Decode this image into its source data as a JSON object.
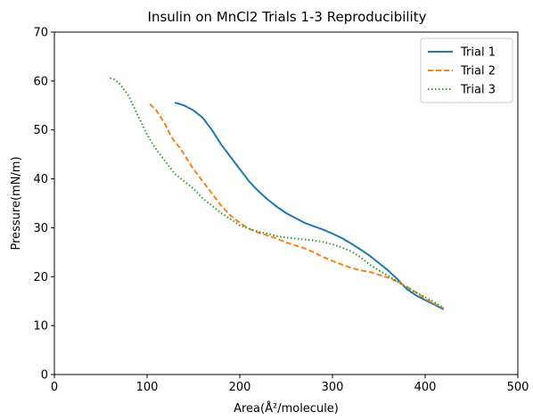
{
  "chart_data": {
    "type": "line",
    "title": "Insulin on MnCl2 Trials 1-3 Reproducibility",
    "xlabel": "Area(Å²/molecule)",
    "ylabel": "Pressure(mN/m)",
    "xlim": [
      0,
      500
    ],
    "ylim": [
      0,
      70
    ],
    "x_ticks": [
      "0",
      "100",
      "200",
      "300",
      "400",
      "500"
    ],
    "y_ticks": [
      "0",
      "10",
      "20",
      "30",
      "40",
      "50",
      "60",
      "70"
    ],
    "legend_position": "top-right",
    "grid": false,
    "series": [
      {
        "name": "Trial 1",
        "color": "#1f77b4",
        "dash": "solid",
        "x": [
          130,
          140,
          150,
          160,
          170,
          180,
          190,
          200,
          210,
          220,
          230,
          240,
          250,
          260,
          270,
          280,
          290,
          300,
          310,
          320,
          330,
          340,
          350,
          360,
          370,
          380,
          390,
          400,
          410,
          420
        ],
        "y": [
          55.6,
          55.0,
          54.0,
          52.5,
          50.0,
          47.0,
          44.5,
          42.0,
          39.5,
          37.5,
          35.8,
          34.3,
          33.0,
          32.0,
          31.0,
          30.3,
          29.6,
          28.8,
          27.9,
          26.8,
          25.6,
          24.3,
          22.8,
          21.3,
          19.5,
          17.5,
          16.2,
          15.2,
          14.3,
          13.3
        ]
      },
      {
        "name": "Trial 2",
        "color": "#ff7f0e",
        "dash": "dashed",
        "x": [
          103,
          110,
          115,
          120,
          125,
          130,
          135,
          140,
          150,
          160,
          170,
          180,
          190,
          200,
          210,
          220,
          230,
          240,
          250,
          260,
          270,
          280,
          290,
          300,
          310,
          320,
          330,
          340,
          350,
          360,
          370,
          380,
          390,
          400,
          410,
          420
        ],
        "y": [
          55.3,
          54.0,
          52.5,
          51.0,
          49.0,
          47.5,
          46.5,
          45.0,
          42.0,
          39.5,
          37.0,
          34.5,
          32.5,
          31.0,
          29.8,
          29.0,
          28.4,
          27.8,
          27.0,
          26.4,
          25.8,
          25.0,
          24.0,
          23.2,
          22.5,
          21.8,
          21.3,
          21.0,
          20.4,
          19.8,
          19.0,
          18.0,
          16.8,
          15.5,
          14.5,
          13.5
        ]
      },
      {
        "name": "Trial 3",
        "color": "#2ca02c",
        "dash": "dotted",
        "x": [
          60,
          65,
          70,
          75,
          80,
          85,
          90,
          95,
          100,
          110,
          120,
          130,
          140,
          150,
          160,
          170,
          180,
          190,
          200,
          210,
          220,
          230,
          240,
          250,
          260,
          270,
          280,
          290,
          300,
          310,
          320,
          330,
          340,
          350,
          360,
          370,
          380,
          390,
          400,
          410,
          420
        ],
        "y": [
          60.6,
          60.3,
          59.5,
          58.3,
          57.0,
          55.0,
          53.0,
          51.0,
          49.0,
          46.0,
          43.5,
          41.0,
          39.5,
          38.0,
          36.0,
          34.5,
          33.0,
          31.8,
          30.5,
          29.8,
          29.2,
          28.8,
          28.3,
          28.0,
          27.8,
          27.6,
          27.4,
          27.1,
          26.6,
          26.0,
          25.2,
          24.0,
          22.5,
          21.3,
          20.2,
          19.0,
          17.8,
          16.8,
          15.8,
          14.8,
          13.6
        ]
      }
    ]
  }
}
